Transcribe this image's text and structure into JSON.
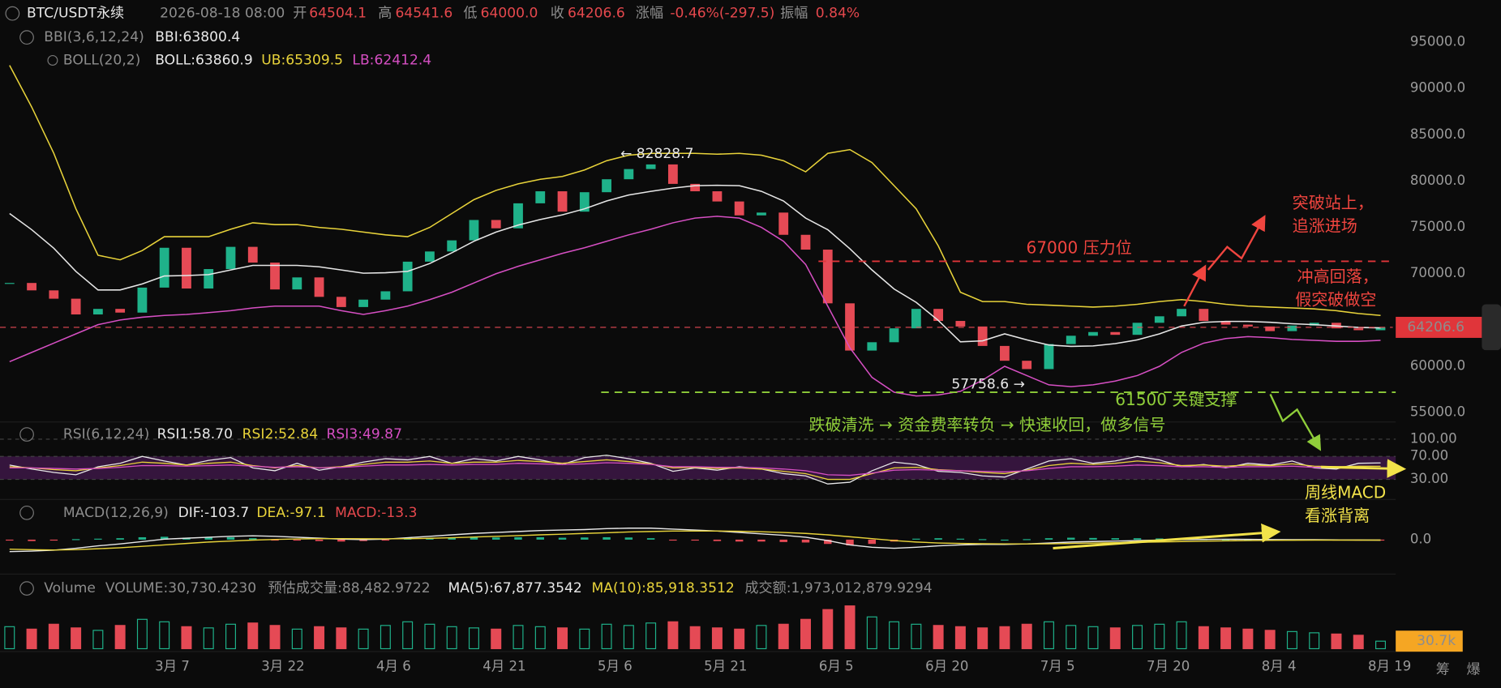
{
  "header": {
    "symbol": "BTC/USDT永续",
    "time": "2026-08-18 08:00",
    "open_label": "开",
    "open": "64504.1",
    "high_label": "高",
    "high": "64541.6",
    "low_label": "低",
    "low": "64000.0",
    "close_label": "收",
    "close": "64206.6",
    "change_label": "涨幅",
    "change": "-0.46%(-297.5)",
    "amplitude_label": "振幅",
    "amplitude": "0.84%"
  },
  "bbi": {
    "indicator": "BBI(3,6,12,24)",
    "label": "BBI:63800.4"
  },
  "price_chart": {
    "type": "candlestick",
    "indicator": "BOLL(20,2)",
    "up_color": "#1fb28a",
    "down_color": "#e54a55",
    "closes": [
      69000,
      68200,
      67300,
      65600,
      66200,
      65800,
      68500,
      72800,
      68400,
      70500,
      72900,
      71200,
      68300,
      69600,
      67500,
      66400,
      67200,
      68100,
      71300,
      72400,
      73600,
      75800,
      74900,
      77600,
      78900,
      76700,
      78800,
      80200,
      81300,
      81800,
      79700,
      78900,
      77800,
      76300,
      76600,
      74200,
      72600,
      66800,
      61700,
      62600,
      64100,
      66200,
      64900,
      64300,
      62200,
      60600,
      59700,
      62400,
      63300,
      63700,
      63400,
      64700,
      65400,
      66200,
      64900,
      64500,
      64300,
      63800,
      64400,
      64700,
      64100,
      63900,
      64206.6
    ],
    "series": [
      {
        "label": "BOLL:63860.9",
        "color": "#e6e6e6",
        "values": [
          76500,
          74750,
          72750,
          70250,
          68250,
          68250,
          68900,
          69750,
          69800,
          69900,
          70400,
          70900,
          70900,
          70900,
          70750,
          70400,
          70050,
          70100,
          70250,
          71100,
          72250,
          73500,
          74500,
          75250,
          75850,
          76350,
          77000,
          77850,
          78500,
          78900,
          79250,
          79500,
          79550,
          79500,
          78900,
          77850,
          76000,
          74750,
          72700,
          70400,
          68350,
          66900,
          64950,
          62650,
          62750,
          63500,
          62850,
          62300,
          62150,
          62200,
          62450,
          62850,
          63500,
          64350,
          64750,
          64850,
          64850,
          64750,
          64600,
          64500,
          64350,
          64200,
          64150
        ]
      },
      {
        "label": "UB:65309.5",
        "color": "#e8d33a",
        "values": [
          92500,
          88000,
          83000,
          77000,
          72000,
          71500,
          72500,
          74000,
          74000,
          74000,
          74800,
          75500,
          75300,
          75300,
          75000,
          74800,
          74500,
          74200,
          74000,
          75000,
          76500,
          78000,
          79000,
          79700,
          80200,
          80500,
          81200,
          82200,
          82800,
          83000,
          83000,
          83000,
          82900,
          83000,
          82800,
          82200,
          81000,
          83000,
          83400,
          82000,
          79500,
          77000,
          73000,
          68000,
          67000,
          67000,
          66700,
          66600,
          66500,
          66400,
          66500,
          66700,
          67000,
          67200,
          67000,
          66700,
          66500,
          66400,
          66300,
          66200,
          66000,
          65700,
          65500
        ]
      },
      {
        "label": "LB:62412.4",
        "color": "#d64fc3",
        "values": [
          60500,
          61500,
          62500,
          63500,
          64500,
          65000,
          65300,
          65500,
          65600,
          65800,
          66000,
          66300,
          66500,
          66500,
          66500,
          66000,
          65600,
          66000,
          66500,
          67200,
          68000,
          69000,
          70000,
          70800,
          71500,
          72200,
          72800,
          73500,
          74200,
          74800,
          75500,
          76000,
          76200,
          76000,
          75000,
          73500,
          71000,
          66500,
          62000,
          58800,
          57200,
          56800,
          56900,
          57300,
          58500,
          60000,
          59000,
          58000,
          57800,
          58000,
          58400,
          59000,
          60000,
          61500,
          62500,
          63000,
          63200,
          63100,
          62900,
          62800,
          62700,
          62700,
          62800
        ]
      }
    ],
    "ylim": [
      54000,
      97000
    ],
    "yticks": [
      {
        "value": 55000,
        "label": "55000.0"
      },
      {
        "value": 60000,
        "label": "60000.0"
      },
      {
        "value": 70000,
        "label": "70000.0"
      },
      {
        "value": 75000,
        "label": "75000.0"
      },
      {
        "value": 80000,
        "label": "80000.0"
      },
      {
        "value": 85000,
        "label": "85000.0"
      },
      {
        "value": 90000,
        "label": "90000.0"
      },
      {
        "value": 95000,
        "label": "95000.0"
      }
    ],
    "grid": false,
    "high_label": "← 82828.7",
    "low_label": "57758.6 →"
  },
  "rsi": {
    "type": "line",
    "indicator": "RSI(6,12,24)",
    "series": [
      {
        "label": "RSI1:58.70",
        "color": "#e8e8e8",
        "values": [
          55,
          48,
          42,
          38,
          52,
          58,
          70,
          62,
          55,
          63,
          68,
          50,
          45,
          58,
          46,
          52,
          60,
          66,
          64,
          70,
          58,
          66,
          62,
          70,
          64,
          56,
          68,
          72,
          66,
          58,
          44,
          50,
          46,
          52,
          48,
          40,
          36,
          22,
          25,
          45,
          60,
          56,
          44,
          42,
          36,
          34,
          48,
          62,
          66,
          58,
          62,
          70,
          64,
          52,
          56,
          50,
          58,
          55,
          62,
          50,
          48,
          58,
          58.7
        ]
      },
      {
        "label": "RSI2:52.84",
        "color": "#e8d33a",
        "values": [
          52,
          50,
          47,
          45,
          50,
          54,
          60,
          58,
          55,
          58,
          60,
          54,
          50,
          54,
          50,
          52,
          56,
          60,
          60,
          62,
          58,
          60,
          60,
          63,
          61,
          58,
          61,
          64,
          61,
          57,
          50,
          51,
          49,
          50,
          48,
          44,
          40,
          30,
          30,
          40,
          50,
          51,
          47,
          45,
          42,
          40,
          46,
          54,
          58,
          56,
          58,
          62,
          59,
          54,
          55,
          53,
          55,
          54,
          57,
          53,
          52,
          53,
          52.84
        ]
      },
      {
        "label": "RSI3:49.87",
        "color": "#d64fc3",
        "values": [
          50,
          50,
          49,
          48,
          49,
          51,
          54,
          54,
          53,
          54,
          55,
          53,
          51,
          52,
          50,
          51,
          53,
          55,
          55,
          56,
          55,
          56,
          56,
          58,
          57,
          56,
          57,
          59,
          58,
          56,
          52,
          52,
          51,
          51,
          50,
          48,
          45,
          38,
          37,
          41,
          46,
          47,
          46,
          45,
          44,
          43,
          45,
          49,
          52,
          52,
          53,
          55,
          54,
          52,
          52,
          51,
          52,
          52,
          53,
          51,
          51,
          50,
          49.87
        ]
      }
    ],
    "ylim": [
      0,
      100
    ],
    "yticks": [
      {
        "value": 30,
        "label": "30.00"
      },
      {
        "value": 70,
        "label": "70.00"
      },
      {
        "value": 100,
        "label": "100.00"
      }
    ]
  },
  "macd": {
    "type": "line",
    "indicator": "MACD(12,26,9)",
    "series": [
      {
        "label": "DIF:-103.7",
        "color": "#e8e8e8",
        "values": [
          -2500,
          -2400,
          -2200,
          -1800,
          -1300,
          -900,
          -400,
          100,
          300,
          500,
          700,
          800,
          700,
          500,
          300,
          100,
          0,
          100,
          400,
          700,
          1000,
          1300,
          1500,
          1700,
          1900,
          2000,
          2100,
          2300,
          2400,
          2400,
          2200,
          2000,
          1800,
          1500,
          1200,
          900,
          500,
          -200,
          -1100,
          -1600,
          -1800,
          -1600,
          -1300,
          -1100,
          -1000,
          -1000,
          -900,
          -700,
          -500,
          -400,
          -300,
          -200,
          -100,
          0,
          50,
          80,
          60,
          30,
          10,
          0,
          -50,
          -80,
          -103.7
        ]
      },
      {
        "label": "DEA:-97.1",
        "color": "#e8d33a",
        "values": [
          -2000,
          -2100,
          -2150,
          -2100,
          -1900,
          -1700,
          -1400,
          -1100,
          -800,
          -500,
          -300,
          -100,
          50,
          150,
          200,
          200,
          180,
          160,
          200,
          280,
          400,
          550,
          700,
          850,
          1000,
          1150,
          1300,
          1450,
          1600,
          1700,
          1800,
          1800,
          1800,
          1750,
          1650,
          1500,
          1300,
          1000,
          600,
          200,
          -200,
          -500,
          -700,
          -800,
          -850,
          -900,
          -900,
          -870,
          -800,
          -720,
          -640,
          -560,
          -480,
          -400,
          -320,
          -250,
          -200,
          -160,
          -130,
          -110,
          -100,
          -98,
          -97.1
        ]
      }
    ],
    "histogram": {
      "label": "MACD:-13.3",
      "values": [
        -200,
        -300,
        -200,
        100,
        200,
        300,
        500,
        600,
        400,
        450,
        500,
        300,
        -100,
        -200,
        -300,
        -400,
        -300,
        -100,
        200,
        300,
        400,
        500,
        450,
        500,
        500,
        400,
        450,
        500,
        450,
        300,
        -100,
        -200,
        -300,
        -400,
        -400,
        -500,
        -600,
        -900,
        -1200,
        -900,
        -400,
        200,
        300,
        200,
        100,
        0,
        100,
        300,
        400,
        350,
        300,
        300,
        250,
        200,
        100,
        50,
        20,
        -50,
        0,
        50,
        -30,
        -20,
        -13.3
      ]
    },
    "ylim": [
      -6000,
      8000
    ],
    "yticks": [
      {
        "value": 0,
        "label": "0.0"
      }
    ]
  },
  "volume": {
    "type": "bar",
    "indicator": "Volume",
    "label": "VOLUME:30,730.4230",
    "estimate": "预估成交量:88,482.9722",
    "ma5": "MA(5):67,877.3542",
    "ma10": "MA(10):85,918.3512",
    "turnover": "成交额:1,973,012,879.9294",
    "values": [
      90000,
      80000,
      100000,
      85000,
      75000,
      95000,
      120000,
      110000,
      90000,
      85000,
      100000,
      105000,
      95000,
      80000,
      90000,
      85000,
      80000,
      95000,
      110000,
      100000,
      90000,
      85000,
      80000,
      95000,
      90000,
      85000,
      80000,
      100000,
      95000,
      105000,
      110000,
      90000,
      85000,
      80000,
      95000,
      100000,
      120000,
      160000,
      175000,
      130000,
      110000,
      100000,
      95000,
      90000,
      85000,
      90000,
      100000,
      110000,
      95000,
      90000,
      85000,
      95000,
      100000,
      110000,
      90000,
      85000,
      80000,
      75000,
      70000,
      65000,
      60000,
      55000,
      30730.423
    ],
    "value_labels": {
      "62": "30.7k"
    },
    "ylim": [
      0,
      180000
    ]
  },
  "x_labels": [
    "3月 7",
    "3月 22",
    "4月 6",
    "4月 21",
    "5月 6",
    "5月 21",
    "6月 5",
    "6月 20",
    "7月 5",
    "7月 20",
    "8月 4",
    "8月 19"
  ],
  "annotations": {
    "resistance": "67000 压力位",
    "breakout": [
      "突破站上，",
      "追涨进场"
    ],
    "fakeout": [
      "冲高回落，",
      "假突破做空"
    ],
    "support": "61500 关键支撑",
    "flush": "跌破清洗 → 资金费率转负 → 快速收回，做多信号",
    "divergence": [
      "周线MACD",
      "看涨背离"
    ]
  },
  "side": [
    "筹",
    "爆"
  ]
}
